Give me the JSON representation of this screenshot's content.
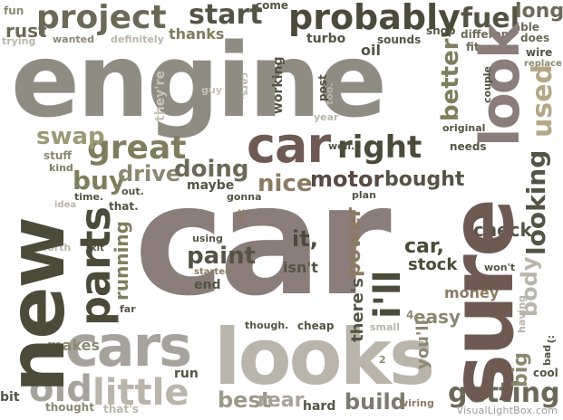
{
  "words": {
    "engine": "engine",
    "car": "car",
    "new": "new",
    "sure": "sure",
    "looks": "looks",
    "cars": "cars",
    "project": "project",
    "probably": "probably",
    "look": "look",
    "parts": "parts",
    "great": "great",
    "right": "right",
    "little": "little",
    "old": "old",
    "getting": "getting",
    "used": "used",
    "looking": "looking",
    "start": "start",
    "fuel": "fuel",
    "long": "long",
    "swap": "swap",
    "buy": "buy",
    "drive": "drive",
    "doing": "doing",
    "nice": "nice",
    "motor": "motor",
    "bought": "bought",
    "better": "better",
    "ill": "i'll",
    "paint": "paint",
    "it": "it,",
    "car_comma": "car,",
    "stock": "stock",
    "check": "check",
    "isnt": "isn't",
    "power": "power",
    "theres": "there's",
    "best": "best",
    "rear": "rear",
    "build": "build",
    "big": "big",
    "body": "body",
    "easy": "easy",
    "money": "money",
    "youll": "you'll",
    "makes": "makes",
    "running": "running",
    "rust": "rust",
    "thanks": "thanks",
    "turbo": "turbo",
    "oil": "oil",
    "come": "come",
    "sounds": "sounds",
    "shop": "shop",
    "different": "different",
    "fit": "fit",
    "able": "able",
    "does": "does",
    "wire": "wire",
    "replace": "replace",
    "fun": "fun",
    "trying": "trying",
    "wanted": "wanted",
    "definitely": "definitely",
    "guy": "guy",
    "cars_dot": "cars.",
    "working": "working",
    "post": "post",
    "too": "too.",
    "year": "year",
    "original": "original",
    "couple": "couple",
    "theyre": "they're",
    "stuff": "stuff",
    "kind": "kind",
    "well": "well.",
    "needs": "needs",
    "time": "time.",
    "out": "out.",
    "maybe": "maybe",
    "gonna": "gonna",
    "plan": "plan",
    "idea": "idea",
    "that": "that.",
    "let": "let",
    "using": "using",
    "started": "started",
    "end": "end",
    "kit": "kit",
    "worth": "worth",
    "far": "far",
    "wont": "won't",
    "though": "though.",
    "cheap": "cheap",
    "small": "small",
    "having": "having",
    "bad": "bad",
    "cool": "cool",
    "smile": ":)",
    "run": "run",
    "hard": "hard",
    "wiring": "wiring",
    "bit": "bit",
    "thought": "thought",
    "thats": "that's",
    "two": "2",
    "four": "4"
  },
  "watermark": "VisualLightBox.com"
}
